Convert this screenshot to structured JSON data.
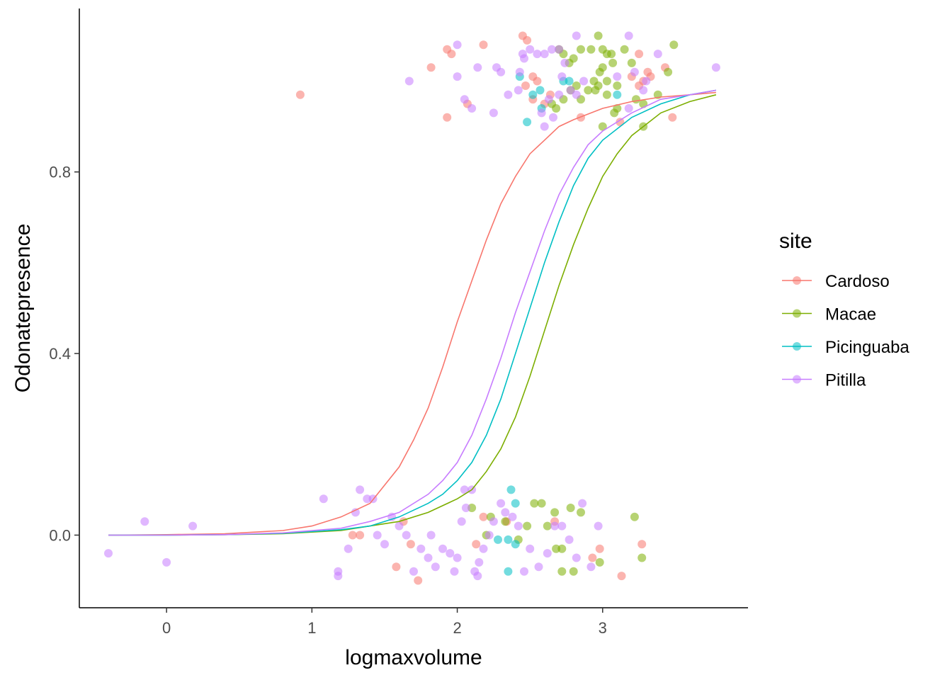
{
  "chart_data": {
    "type": "scatter",
    "xlabel": "logmaxvolume",
    "ylabel": "Odonatepresence",
    "xlim": [
      -0.6,
      4.0
    ],
    "ylim": [
      -0.16,
      1.16
    ],
    "x_ticks": [
      0,
      1,
      2,
      3
    ],
    "x_tick_labels": [
      "0",
      "1",
      "2",
      "3"
    ],
    "y_ticks": [
      0.0,
      0.4,
      0.8
    ],
    "y_tick_labels": [
      "0.0",
      "0.4",
      "0.8"
    ],
    "grid": false,
    "legend": {
      "title": "site",
      "placement": "right"
    },
    "point_opacity": 0.55,
    "series": [
      {
        "name": "Cardoso",
        "color": "#F8766D",
        "curve": [
          [
            -0.4,
            0.0
          ],
          [
            0.0,
            0.001
          ],
          [
            0.4,
            0.003
          ],
          [
            0.8,
            0.01
          ],
          [
            1.0,
            0.02
          ],
          [
            1.2,
            0.04
          ],
          [
            1.4,
            0.07
          ],
          [
            1.6,
            0.15
          ],
          [
            1.7,
            0.21
          ],
          [
            1.8,
            0.28
          ],
          [
            1.9,
            0.37
          ],
          [
            2.0,
            0.47
          ],
          [
            2.1,
            0.56
          ],
          [
            2.2,
            0.65
          ],
          [
            2.3,
            0.73
          ],
          [
            2.4,
            0.79
          ],
          [
            2.5,
            0.84
          ],
          [
            2.6,
            0.87
          ],
          [
            2.7,
            0.9
          ],
          [
            2.8,
            0.915
          ],
          [
            3.0,
            0.94
          ],
          [
            3.2,
            0.955
          ],
          [
            3.4,
            0.965
          ],
          [
            3.6,
            0.97
          ],
          [
            3.78,
            0.975
          ]
        ],
        "points": [
          [
            0.92,
            0.97
          ],
          [
            1.82,
            1.03
          ],
          [
            1.93,
            1.07
          ],
          [
            1.96,
            1.06
          ],
          [
            2.18,
            1.08
          ],
          [
            2.07,
            0.95
          ],
          [
            1.93,
            0.92
          ],
          [
            2.45,
            1.1
          ],
          [
            2.48,
            1.09
          ],
          [
            2.52,
            1.01
          ],
          [
            2.55,
            1.0
          ],
          [
            2.47,
            0.99
          ],
          [
            2.52,
            0.96
          ],
          [
            2.6,
            0.95
          ],
          [
            2.64,
            0.97
          ],
          [
            2.85,
            0.92
          ],
          [
            3.12,
            0.91
          ],
          [
            3.2,
            1.01
          ],
          [
            3.25,
            0.99
          ],
          [
            3.28,
            1.0
          ],
          [
            3.31,
            1.02
          ],
          [
            3.33,
            1.01
          ],
          [
            3.43,
            1.03
          ],
          [
            3.48,
            0.92
          ],
          [
            3.25,
            1.06
          ],
          [
            1.28,
            0.0
          ],
          [
            1.33,
            0.0
          ],
          [
            1.58,
            -0.07
          ],
          [
            1.68,
            -0.02
          ],
          [
            1.73,
            -0.1
          ],
          [
            1.63,
            0.03
          ],
          [
            2.13,
            -0.02
          ],
          [
            2.18,
            0.04
          ],
          [
            2.34,
            0.03
          ],
          [
            2.67,
            0.03
          ],
          [
            2.98,
            -0.03
          ],
          [
            2.93,
            -0.05
          ],
          [
            3.13,
            -0.09
          ],
          [
            3.27,
            -0.02
          ]
        ]
      },
      {
        "name": "Macae",
        "color": "#7CAE00",
        "curve": [
          [
            -0.4,
            0.0
          ],
          [
            0.0,
            0.0
          ],
          [
            0.4,
            0.001
          ],
          [
            0.8,
            0.003
          ],
          [
            1.2,
            0.01
          ],
          [
            1.4,
            0.02
          ],
          [
            1.6,
            0.03
          ],
          [
            1.8,
            0.05
          ],
          [
            2.0,
            0.08
          ],
          [
            2.1,
            0.1
          ],
          [
            2.2,
            0.14
          ],
          [
            2.3,
            0.19
          ],
          [
            2.4,
            0.26
          ],
          [
            2.5,
            0.35
          ],
          [
            2.6,
            0.45
          ],
          [
            2.7,
            0.55
          ],
          [
            2.8,
            0.64
          ],
          [
            2.9,
            0.72
          ],
          [
            3.0,
            0.79
          ],
          [
            3.1,
            0.84
          ],
          [
            3.2,
            0.88
          ],
          [
            3.4,
            0.93
          ],
          [
            3.6,
            0.955
          ],
          [
            3.78,
            0.97
          ]
        ],
        "points": [
          [
            2.7,
            1.07
          ],
          [
            2.73,
            1.06
          ],
          [
            2.77,
            1.04
          ],
          [
            2.8,
            1.05
          ],
          [
            2.85,
            1.07
          ],
          [
            2.92,
            1.07
          ],
          [
            2.97,
            1.1
          ],
          [
            3.0,
            1.07
          ],
          [
            3.03,
            1.06
          ],
          [
            3.06,
            1.06
          ],
          [
            3.15,
            1.07
          ],
          [
            3.2,
            1.04
          ],
          [
            3.07,
            1.04
          ],
          [
            2.98,
            1.02
          ],
          [
            3.0,
            1.03
          ],
          [
            2.94,
            1.0
          ],
          [
            2.97,
            0.99
          ],
          [
            3.03,
            1.0
          ],
          [
            3.1,
            0.99
          ],
          [
            3.03,
            0.97
          ],
          [
            2.95,
            0.98
          ],
          [
            2.9,
            0.98
          ],
          [
            2.85,
            0.96
          ],
          [
            2.82,
            0.99
          ],
          [
            2.78,
            0.98
          ],
          [
            2.73,
            0.96
          ],
          [
            2.65,
            0.95
          ],
          [
            2.68,
            0.94
          ],
          [
            3.1,
            0.94
          ],
          [
            3.08,
            0.93
          ],
          [
            3.28,
            0.95
          ],
          [
            3.38,
            0.97
          ],
          [
            3.0,
            0.9
          ],
          [
            3.28,
            0.9
          ],
          [
            3.45,
            1.02
          ],
          [
            3.49,
            1.08
          ],
          [
            3.23,
            0.96
          ],
          [
            2.1,
            0.06
          ],
          [
            2.23,
            0.04
          ],
          [
            2.2,
            0.0
          ],
          [
            2.33,
            0.03
          ],
          [
            2.42,
            -0.01
          ],
          [
            2.48,
            0.02
          ],
          [
            2.53,
            0.07
          ],
          [
            2.58,
            0.07
          ],
          [
            2.62,
            0.02
          ],
          [
            2.67,
            0.05
          ],
          [
            2.68,
            -0.03
          ],
          [
            2.72,
            -0.03
          ],
          [
            2.78,
            0.06
          ],
          [
            2.72,
            -0.08
          ],
          [
            2.8,
            -0.08
          ],
          [
            2.98,
            -0.06
          ],
          [
            2.85,
            0.05
          ],
          [
            3.22,
            0.04
          ],
          [
            3.27,
            -0.05
          ]
        ]
      },
      {
        "name": "Picinguaba",
        "color": "#00BFC4",
        "curve": [
          [
            -0.4,
            0.0
          ],
          [
            0.0,
            0.0
          ],
          [
            0.4,
            0.001
          ],
          [
            0.8,
            0.004
          ],
          [
            1.2,
            0.012
          ],
          [
            1.4,
            0.02
          ],
          [
            1.6,
            0.04
          ],
          [
            1.8,
            0.07
          ],
          [
            1.9,
            0.09
          ],
          [
            2.0,
            0.12
          ],
          [
            2.1,
            0.16
          ],
          [
            2.2,
            0.22
          ],
          [
            2.3,
            0.3
          ],
          [
            2.4,
            0.4
          ],
          [
            2.5,
            0.5
          ],
          [
            2.6,
            0.6
          ],
          [
            2.7,
            0.69
          ],
          [
            2.8,
            0.77
          ],
          [
            2.9,
            0.83
          ],
          [
            3.0,
            0.87
          ],
          [
            3.2,
            0.92
          ],
          [
            3.4,
            0.95
          ],
          [
            3.6,
            0.97
          ],
          [
            3.78,
            0.98
          ]
        ],
        "points": [
          [
            2.43,
            1.01
          ],
          [
            2.52,
            0.97
          ],
          [
            2.57,
            0.98
          ],
          [
            2.58,
            0.94
          ],
          [
            2.73,
            1.0
          ],
          [
            2.77,
            1.0
          ],
          [
            3.1,
            0.97
          ],
          [
            2.48,
            0.91
          ],
          [
            2.37,
            0.1
          ],
          [
            2.4,
            0.07
          ],
          [
            2.28,
            -0.01
          ],
          [
            2.35,
            -0.01
          ],
          [
            2.4,
            -0.02
          ],
          [
            2.35,
            -0.08
          ]
        ]
      },
      {
        "name": "Pitilla",
        "color": "#C77CFF",
        "curve": [
          [
            -0.4,
            0.0
          ],
          [
            0.0,
            0.0
          ],
          [
            0.4,
            0.001
          ],
          [
            0.8,
            0.005
          ],
          [
            1.2,
            0.015
          ],
          [
            1.4,
            0.03
          ],
          [
            1.6,
            0.05
          ],
          [
            1.8,
            0.09
          ],
          [
            1.9,
            0.12
          ],
          [
            2.0,
            0.16
          ],
          [
            2.1,
            0.22
          ],
          [
            2.2,
            0.3
          ],
          [
            2.3,
            0.39
          ],
          [
            2.4,
            0.49
          ],
          [
            2.5,
            0.58
          ],
          [
            2.6,
            0.67
          ],
          [
            2.7,
            0.75
          ],
          [
            2.8,
            0.81
          ],
          [
            2.9,
            0.86
          ],
          [
            3.0,
            0.89
          ],
          [
            3.2,
            0.93
          ],
          [
            3.4,
            0.96
          ],
          [
            3.6,
            0.97
          ],
          [
            3.78,
            0.98
          ]
        ],
        "points": [
          [
            1.67,
            1.0
          ],
          [
            2.0,
            1.08
          ],
          [
            2.0,
            1.01
          ],
          [
            2.05,
            0.96
          ],
          [
            2.1,
            0.94
          ],
          [
            2.14,
            1.03
          ],
          [
            2.27,
            1.03
          ],
          [
            2.3,
            1.02
          ],
          [
            2.35,
            0.97
          ],
          [
            2.42,
            0.98
          ],
          [
            2.45,
            1.06
          ],
          [
            2.46,
            1.05
          ],
          [
            2.43,
            1.02
          ],
          [
            2.5,
            1.07
          ],
          [
            2.55,
            1.06
          ],
          [
            2.6,
            1.06
          ],
          [
            2.65,
            1.07
          ],
          [
            2.7,
            1.07
          ],
          [
            2.72,
            1.01
          ],
          [
            2.63,
            0.96
          ],
          [
            2.7,
            0.97
          ],
          [
            2.58,
            0.93
          ],
          [
            2.66,
            0.92
          ],
          [
            2.6,
            0.9
          ],
          [
            2.78,
            0.98
          ],
          [
            2.82,
            0.97
          ],
          [
            2.87,
            1.0
          ],
          [
            2.82,
            1.1
          ],
          [
            2.74,
            1.04
          ],
          [
            3.1,
            1.01
          ],
          [
            3.22,
            1.02
          ],
          [
            3.18,
            0.94
          ],
          [
            3.3,
            1.0
          ],
          [
            3.38,
            1.06
          ],
          [
            3.18,
            1.1
          ],
          [
            3.28,
            0.98
          ],
          [
            3.78,
            1.03
          ],
          [
            2.25,
            0.93
          ],
          [
            -0.4,
            -0.04
          ],
          [
            -0.15,
            0.03
          ],
          [
            0.0,
            -0.06
          ],
          [
            0.18,
            0.02
          ],
          [
            1.08,
            0.08
          ],
          [
            1.18,
            -0.08
          ],
          [
            1.18,
            -0.09
          ],
          [
            1.3,
            0.05
          ],
          [
            1.33,
            0.1
          ],
          [
            1.38,
            0.08
          ],
          [
            1.42,
            0.08
          ],
          [
            1.25,
            -0.03
          ],
          [
            1.45,
            0.0
          ],
          [
            1.5,
            -0.02
          ],
          [
            1.55,
            0.04
          ],
          [
            1.6,
            0.02
          ],
          [
            1.65,
            0.0
          ],
          [
            1.7,
            -0.08
          ],
          [
            1.75,
            -0.03
          ],
          [
            1.8,
            -0.05
          ],
          [
            1.82,
            0.0
          ],
          [
            1.85,
            -0.07
          ],
          [
            1.9,
            -0.03
          ],
          [
            1.95,
            -0.04
          ],
          [
            1.98,
            -0.08
          ],
          [
            2.0,
            -0.05
          ],
          [
            2.03,
            0.03
          ],
          [
            2.05,
            0.1
          ],
          [
            2.1,
            0.1
          ],
          [
            2.12,
            -0.08
          ],
          [
            2.15,
            -0.06
          ],
          [
            2.18,
            -0.03
          ],
          [
            2.22,
            0.0
          ],
          [
            2.25,
            0.03
          ],
          [
            2.3,
            0.07
          ],
          [
            2.33,
            0.05
          ],
          [
            2.38,
            0.04
          ],
          [
            2.42,
            0.02
          ],
          [
            2.46,
            -0.08
          ],
          [
            2.5,
            -0.03
          ],
          [
            2.56,
            -0.07
          ],
          [
            2.62,
            -0.04
          ],
          [
            2.67,
            0.02
          ],
          [
            2.72,
            0.02
          ],
          [
            2.77,
            -0.01
          ],
          [
            2.82,
            -0.05
          ],
          [
            2.86,
            0.07
          ],
          [
            2.92,
            -0.07
          ],
          [
            2.97,
            0.02
          ],
          [
            2.14,
            -0.09
          ],
          [
            2.06,
            0.06
          ]
        ]
      }
    ]
  }
}
